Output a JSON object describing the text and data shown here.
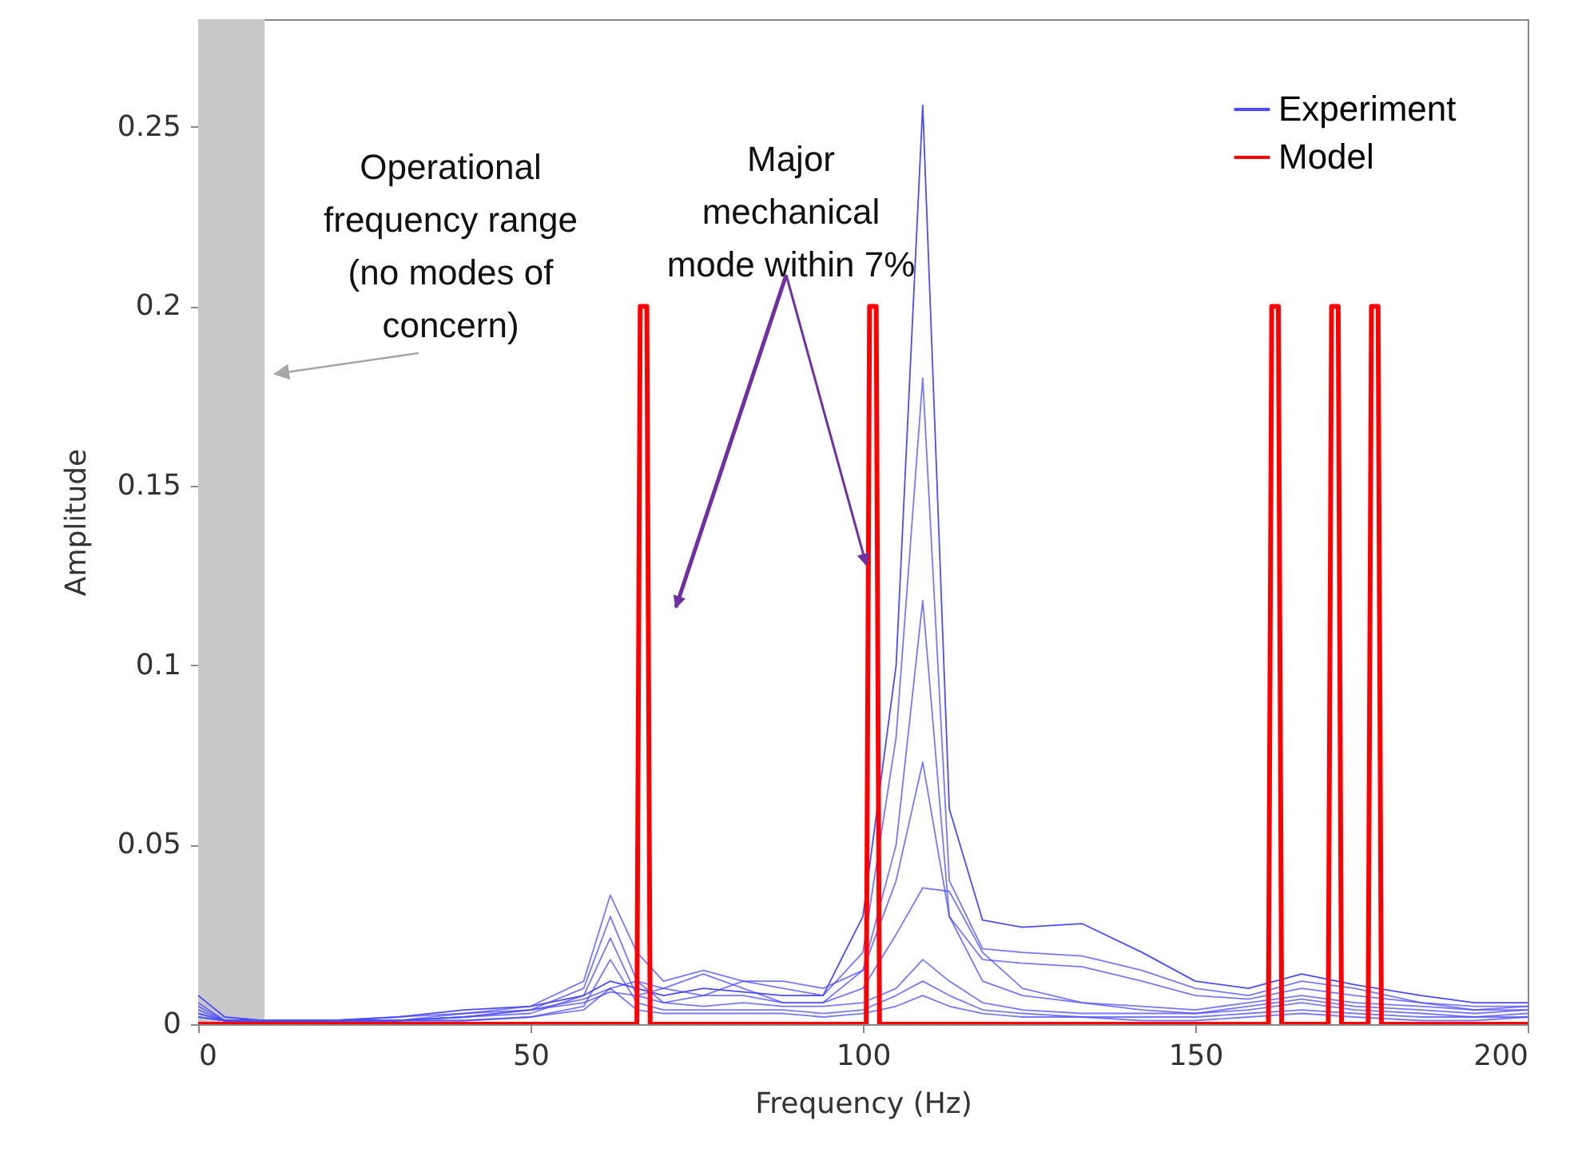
{
  "chart_data": {
    "type": "line",
    "xlabel": "Frequency (Hz)",
    "ylabel": "Amplitude",
    "xlim": [
      0,
      200
    ],
    "xticks": [
      0,
      50,
      100,
      150,
      200
    ],
    "ylim": [
      0,
      0.28
    ],
    "yticks": [
      0,
      0.05,
      0.1,
      0.15,
      0.2,
      0.25
    ],
    "legend": "top right",
    "annotations": [
      "Operational frequency range (no modes of concern)",
      {
        "text": "Major mechanical mode within 7%",
        "x": 100.5,
        "y": 0.128
      }
    ],
    "bands": [
      {
        "axis": "x",
        "from": 0,
        "to": 10,
        "color": "#c8c8c8"
      }
    ],
    "x": [
      0,
      4,
      10,
      20,
      30,
      40,
      50,
      58,
      62,
      66,
      70,
      76,
      82,
      88,
      94,
      100,
      105,
      109,
      113,
      118,
      124,
      133,
      142,
      150,
      158,
      166,
      174,
      184,
      192,
      200
    ],
    "series": [
      {
        "name": "Experiment",
        "color": "#4b4bff",
        "values": [
          0.008,
          0.002,
          0.001,
          0.001,
          0.002,
          0.004,
          0.005,
          0.008,
          0.012,
          0.01,
          0.008,
          0.01,
          0.009,
          0.008,
          0.008,
          0.03,
          0.1,
          0.256,
          0.06,
          0.029,
          0.027,
          0.028,
          0.02,
          0.012,
          0.01,
          0.014,
          0.011,
          0.008,
          0.006,
          0.006
        ]
      },
      {
        "color": "#4b4bff",
        "values": [
          0.006,
          0.001,
          0.001,
          0.001,
          0.001,
          0.003,
          0.004,
          0.007,
          0.01,
          0.012,
          0.006,
          0.008,
          0.012,
          0.01,
          0.008,
          0.02,
          0.08,
          0.18,
          0.04,
          0.021,
          0.02,
          0.019,
          0.015,
          0.01,
          0.008,
          0.012,
          0.01,
          0.006,
          0.005,
          0.005
        ]
      },
      {
        "color": "#4b4bff",
        "values": [
          0.005,
          0.001,
          0.001,
          0.001,
          0.001,
          0.002,
          0.004,
          0.006,
          0.009,
          0.008,
          0.01,
          0.014,
          0.01,
          0.006,
          0.006,
          0.015,
          0.05,
          0.118,
          0.03,
          0.018,
          0.017,
          0.016,
          0.012,
          0.008,
          0.007,
          0.01,
          0.008,
          0.006,
          0.004,
          0.004
        ]
      },
      {
        "color": "#4b4bff",
        "values": [
          0.004,
          0.001,
          0.001,
          0.001,
          0.002,
          0.003,
          0.005,
          0.012,
          0.036,
          0.02,
          0.012,
          0.015,
          0.012,
          0.012,
          0.01,
          0.015,
          0.04,
          0.073,
          0.03,
          0.012,
          0.008,
          0.006,
          0.005,
          0.004,
          0.006,
          0.008,
          0.006,
          0.005,
          0.004,
          0.005
        ]
      },
      {
        "color": "#4b4bff",
        "values": [
          0.003,
          0.001,
          0.001,
          0.001,
          0.001,
          0.002,
          0.004,
          0.01,
          0.03,
          0.012,
          0.01,
          0.008,
          0.008,
          0.006,
          0.006,
          0.01,
          0.025,
          0.038,
          0.037,
          0.02,
          0.01,
          0.006,
          0.004,
          0.003,
          0.005,
          0.007,
          0.005,
          0.004,
          0.003,
          0.004
        ]
      },
      {
        "color": "#4b4bff",
        "values": [
          0.003,
          0.001,
          0.001,
          0.001,
          0.001,
          0.002,
          0.003,
          0.008,
          0.024,
          0.008,
          0.006,
          0.005,
          0.006,
          0.005,
          0.005,
          0.006,
          0.01,
          0.018,
          0.012,
          0.006,
          0.004,
          0.003,
          0.003,
          0.003,
          0.004,
          0.006,
          0.004,
          0.003,
          0.002,
          0.003
        ]
      },
      {
        "color": "#4b4bff",
        "values": [
          0.002,
          0.001,
          0.001,
          0.001,
          0.001,
          0.001,
          0.002,
          0.005,
          0.018,
          0.006,
          0.004,
          0.004,
          0.004,
          0.004,
          0.003,
          0.004,
          0.008,
          0.012,
          0.008,
          0.004,
          0.003,
          0.002,
          0.002,
          0.002,
          0.003,
          0.004,
          0.003,
          0.002,
          0.002,
          0.002
        ]
      },
      {
        "color": "#4b4bff",
        "values": [
          0.002,
          0.001,
          0.001,
          0.001,
          0.001,
          0.001,
          0.002,
          0.004,
          0.01,
          0.004,
          0.003,
          0.003,
          0.003,
          0.003,
          0.002,
          0.003,
          0.005,
          0.008,
          0.005,
          0.003,
          0.002,
          0.002,
          0.001,
          0.001,
          0.002,
          0.003,
          0.002,
          0.001,
          0.001,
          0.002
        ]
      },
      {
        "name": "Model",
        "color": "#ff0000",
        "x": [
          0,
          66,
          66.5,
          67.5,
          68,
          100.5,
          101,
          102,
          102.5,
          161,
          161.5,
          162.5,
          163,
          170,
          170.5,
          171.5,
          172,
          176,
          176.5,
          177.5,
          178,
          200
        ],
        "values": [
          0,
          0,
          0.2,
          0.2,
          0,
          0,
          0.2,
          0.2,
          0,
          0,
          0.2,
          0.2,
          0,
          0,
          0.2,
          0.2,
          0,
          0,
          0.2,
          0.2,
          0,
          0
        ]
      }
    ]
  }
}
